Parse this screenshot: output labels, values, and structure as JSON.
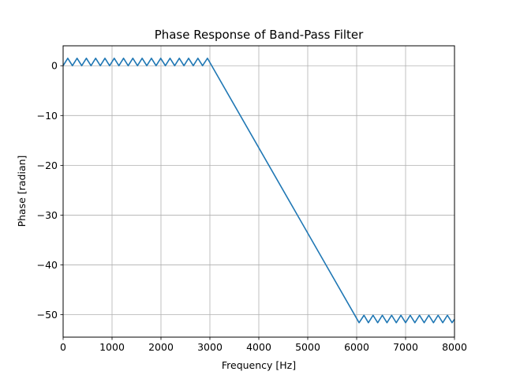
{
  "chart_data": {
    "type": "line",
    "title": "Phase Response of Band-Pass Filter",
    "xlabel": "Frequency [Hz]",
    "ylabel": "Phase [radian]",
    "xlim": [
      0,
      8000
    ],
    "ylim": [
      -54.5,
      4
    ],
    "xticks": [
      0,
      1000,
      2000,
      3000,
      4000,
      5000,
      6000,
      7000,
      8000
    ],
    "yticks": [
      0,
      -10,
      -20,
      -30,
      -40,
      -50
    ],
    "xtick_labels": [
      "0",
      "1000",
      "2000",
      "3000",
      "4000",
      "5000",
      "6000",
      "7000",
      "8000"
    ],
    "ytick_labels": [
      "0",
      "−10",
      "−20",
      "−30",
      "−40",
      "−50"
    ],
    "grid": true,
    "line_color": "#1f77b4",
    "series": [
      {
        "x": [
          0,
          95,
          190,
          285,
          380,
          475,
          570,
          665,
          760,
          855,
          950,
          1045,
          1140,
          1235,
          1330,
          1425,
          1520,
          1615,
          1710,
          1805,
          1900,
          1995,
          2090,
          2185,
          2280,
          2375,
          2470,
          2565,
          2660,
          2755,
          2850,
          2950,
          6050,
          6150,
          6240,
          6335,
          6430,
          6525,
          6620,
          6715,
          6810,
          6905,
          7000,
          7095,
          7190,
          7285,
          7380,
          7475,
          7570,
          7665,
          7760,
          7855,
          7950,
          8000
        ],
        "y": [
          0,
          1.5,
          0,
          1.5,
          0,
          1.5,
          0,
          1.5,
          0,
          1.5,
          0,
          1.5,
          0,
          1.5,
          0,
          1.5,
          0,
          1.5,
          0,
          1.5,
          0,
          1.5,
          0,
          1.5,
          0,
          1.5,
          0,
          1.5,
          0,
          1.5,
          0,
          1.5,
          -51.6,
          -50.1,
          -51.6,
          -50.1,
          -51.6,
          -50.1,
          -51.6,
          -50.1,
          -51.6,
          -50.1,
          -51.6,
          -50.1,
          -51.6,
          -50.1,
          -51.6,
          -50.1,
          -51.6,
          -50.1,
          -51.6,
          -50.1,
          -51.6,
          -50.9
        ]
      }
    ]
  }
}
